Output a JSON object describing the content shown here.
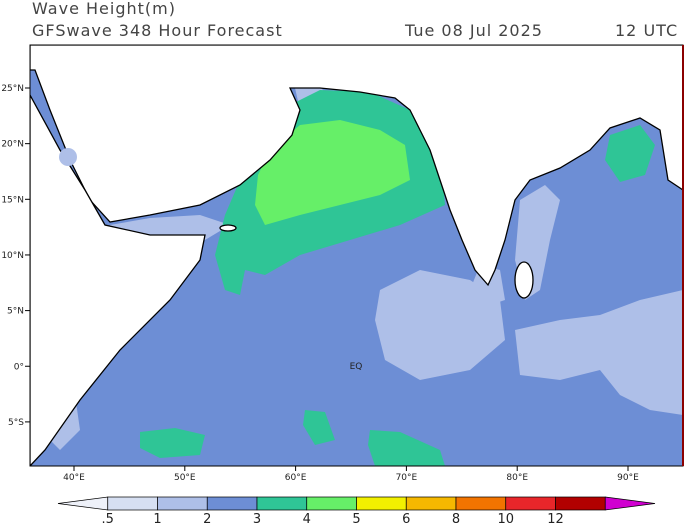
{
  "header": {
    "title": "Wave Height(m)",
    "subtitle": "GFSwave 348 Hour Forecast",
    "date": "Tue 08 Jul 2025",
    "time": "12 UTC"
  },
  "map": {
    "lat_labels": [
      "25°N",
      "20°N",
      "15°N",
      "10°N",
      "5°N",
      "0°",
      "5°S"
    ],
    "lon_labels": [
      "40°E",
      "50°E",
      "60°E",
      "70°E",
      "80°E",
      "90°E"
    ],
    "annotation": "EQ"
  },
  "colorbar": {
    "labels": [
      ".5",
      "1",
      "2",
      "3",
      "4",
      "5",
      "6",
      "8",
      "10",
      "12"
    ],
    "colors": [
      "#eef1f9",
      "#d6dff2",
      "#aebfe8",
      "#6d8ed5",
      "#2fc596",
      "#66ef68",
      "#f2f000",
      "#f5b800",
      "#f27400",
      "#e8262a",
      "#b20000",
      "#d000d0"
    ]
  }
}
